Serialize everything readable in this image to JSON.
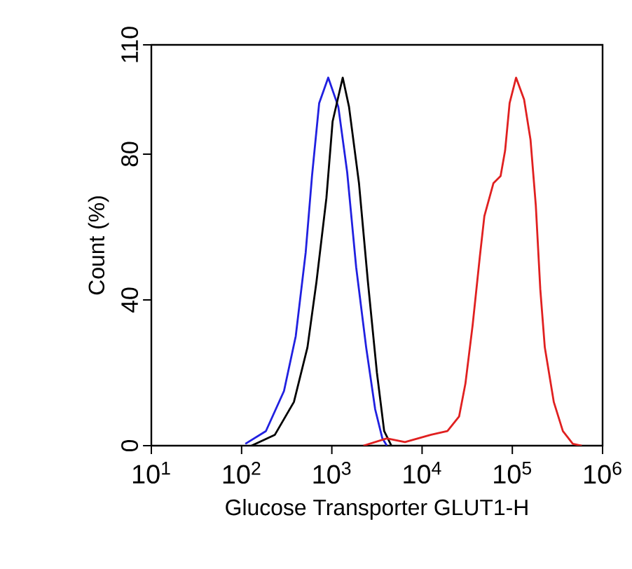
{
  "chart_data": {
    "type": "line",
    "xlabel": "Glucose Transporter GLUT1-H",
    "ylabel": "Count  (%)",
    "log": "x",
    "xlim": [
      10,
      1000000
    ],
    "ylim": [
      0,
      110
    ],
    "xticks": [
      {
        "value": 10,
        "label": "10$^{1}$"
      },
      {
        "value": 100,
        "label": "10$^{2}$"
      },
      {
        "value": 1000,
        "label": "10$^{3}$"
      },
      {
        "value": 10000,
        "label": "10$^{4}$"
      },
      {
        "value": 100000,
        "label": "10$^{5}$"
      },
      {
        "value": 1000000,
        "label": "10$^{6}$"
      }
    ],
    "yticks": [
      0,
      40,
      80,
      110
    ],
    "series": [
      {
        "color": "#2020e0",
        "x": [
          110,
          186,
          295,
          398,
          513,
          603,
          724,
          912,
          1180,
          1480,
          1860,
          2400,
          3020,
          3630,
          4070
        ],
        "values": [
          0.5,
          4,
          15,
          30,
          53,
          74,
          94,
          101,
          93,
          75,
          49,
          27,
          10,
          2,
          0
        ]
      },
      {
        "color": "#000000",
        "x": [
          129,
          234,
          380,
          537,
          676,
          871,
          1020,
          1320,
          1550,
          2000,
          2510,
          3160,
          3800,
          4570
        ],
        "values": [
          0,
          3,
          12,
          27,
          45,
          68,
          89,
          101,
          93,
          72,
          45,
          20,
          4,
          0
        ]
      },
      {
        "color": "#e02020",
        "x": [
          2240,
          4070,
          6460,
          12600,
          19100,
          25700,
          30200,
          36300,
          43700,
          49000,
          61700,
          74100,
          83200,
          93300,
          110000,
          135000,
          159000,
          182000,
          204000,
          229000,
          288000,
          363000,
          468000,
          589000
        ],
        "values": [
          0,
          2,
          1,
          3,
          4,
          8,
          17,
          33,
          52,
          63,
          72,
          74,
          81,
          94,
          101,
          95,
          84,
          66,
          43,
          27,
          12,
          4,
          0.5,
          0
        ]
      }
    ]
  }
}
